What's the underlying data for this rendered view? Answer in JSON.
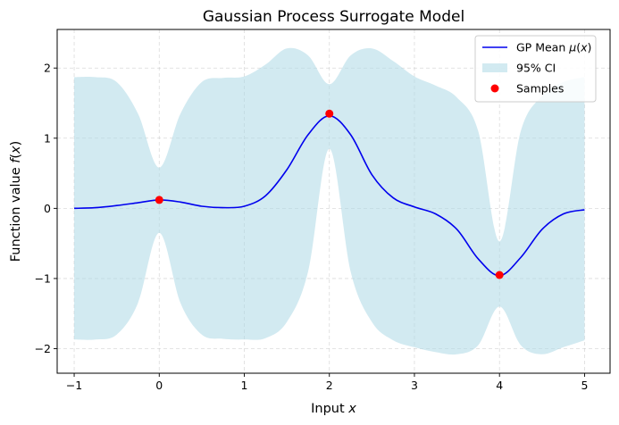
{
  "chart_data": {
    "type": "line",
    "title": "Gaussian Process Surrogate Model",
    "xlabel": "Input x",
    "xlabel_parts": [
      "Input ",
      "x"
    ],
    "ylabel": "Function value f(x)",
    "ylabel_parts": [
      "Function value ",
      "f",
      "(",
      "x",
      ")"
    ],
    "xlim": [
      -1.2,
      5.3
    ],
    "ylim": [
      -2.35,
      2.55
    ],
    "xticks": [
      -1,
      0,
      1,
      2,
      3,
      4,
      5
    ],
    "xtick_labels": [
      "−1",
      "0",
      "1",
      "2",
      "3",
      "4",
      "5"
    ],
    "yticks": [
      -2,
      -1,
      0,
      1,
      2
    ],
    "ytick_labels": [
      "−2",
      "−1",
      "0",
      "1",
      "2"
    ],
    "grid": true,
    "legend_position": "top-right",
    "legend": [
      {
        "label": "GP Mean μ(x)",
        "label_parts": [
          "GP Mean ",
          "μ",
          "(",
          "x",
          ")"
        ],
        "kind": "line"
      },
      {
        "label": "95% CI",
        "label_parts": [
          "95% CI"
        ],
        "kind": "band"
      },
      {
        "label": "Samples",
        "label_parts": [
          "Samples"
        ],
        "kind": "marker"
      }
    ],
    "colors": {
      "mean": "#0000ee",
      "ci": "#add8e6",
      "samples": "#ff0000"
    },
    "series": [
      {
        "name": "GP Mean μ(x)",
        "kind": "line",
        "x": [
          -1.0,
          -0.75,
          -0.5,
          -0.25,
          0.0,
          0.25,
          0.5,
          0.75,
          1.0,
          1.25,
          1.5,
          1.75,
          2.0,
          2.25,
          2.5,
          2.75,
          3.0,
          3.25,
          3.5,
          3.75,
          4.0,
          4.25,
          4.5,
          4.75,
          5.0
        ],
        "y": [
          0.0,
          0.01,
          0.04,
          0.08,
          0.12,
          0.09,
          0.03,
          0.01,
          0.03,
          0.18,
          0.55,
          1.05,
          1.32,
          1.05,
          0.48,
          0.15,
          0.02,
          -0.08,
          -0.3,
          -0.72,
          -0.96,
          -0.7,
          -0.3,
          -0.08,
          -0.02
        ]
      },
      {
        "name": "95% CI",
        "kind": "band",
        "x": [
          -1.0,
          -0.75,
          -0.5,
          -0.25,
          0.0,
          0.25,
          0.5,
          0.75,
          1.0,
          1.25,
          1.5,
          1.75,
          2.0,
          2.25,
          2.5,
          2.75,
          3.0,
          3.25,
          3.5,
          3.75,
          4.0,
          4.25,
          4.5,
          4.75,
          5.0
        ],
        "upper": [
          1.87,
          1.87,
          1.8,
          1.35,
          0.58,
          1.35,
          1.8,
          1.86,
          1.88,
          2.05,
          2.28,
          2.18,
          1.77,
          2.18,
          2.28,
          2.1,
          1.88,
          1.75,
          1.58,
          1.1,
          -0.47,
          1.1,
          1.6,
          1.8,
          1.87
        ],
        "lower": [
          -1.87,
          -1.87,
          -1.8,
          -1.35,
          -0.35,
          -1.35,
          -1.8,
          -1.86,
          -1.87,
          -1.85,
          -1.62,
          -0.9,
          0.85,
          -0.9,
          -1.62,
          -1.88,
          -1.98,
          -2.05,
          -2.08,
          -1.95,
          -1.4,
          -1.95,
          -2.08,
          -1.98,
          -1.88
        ]
      },
      {
        "name": "Samples",
        "kind": "scatter",
        "x": [
          0,
          2,
          4
        ],
        "y": [
          0.12,
          1.35,
          -0.95
        ]
      }
    ]
  }
}
